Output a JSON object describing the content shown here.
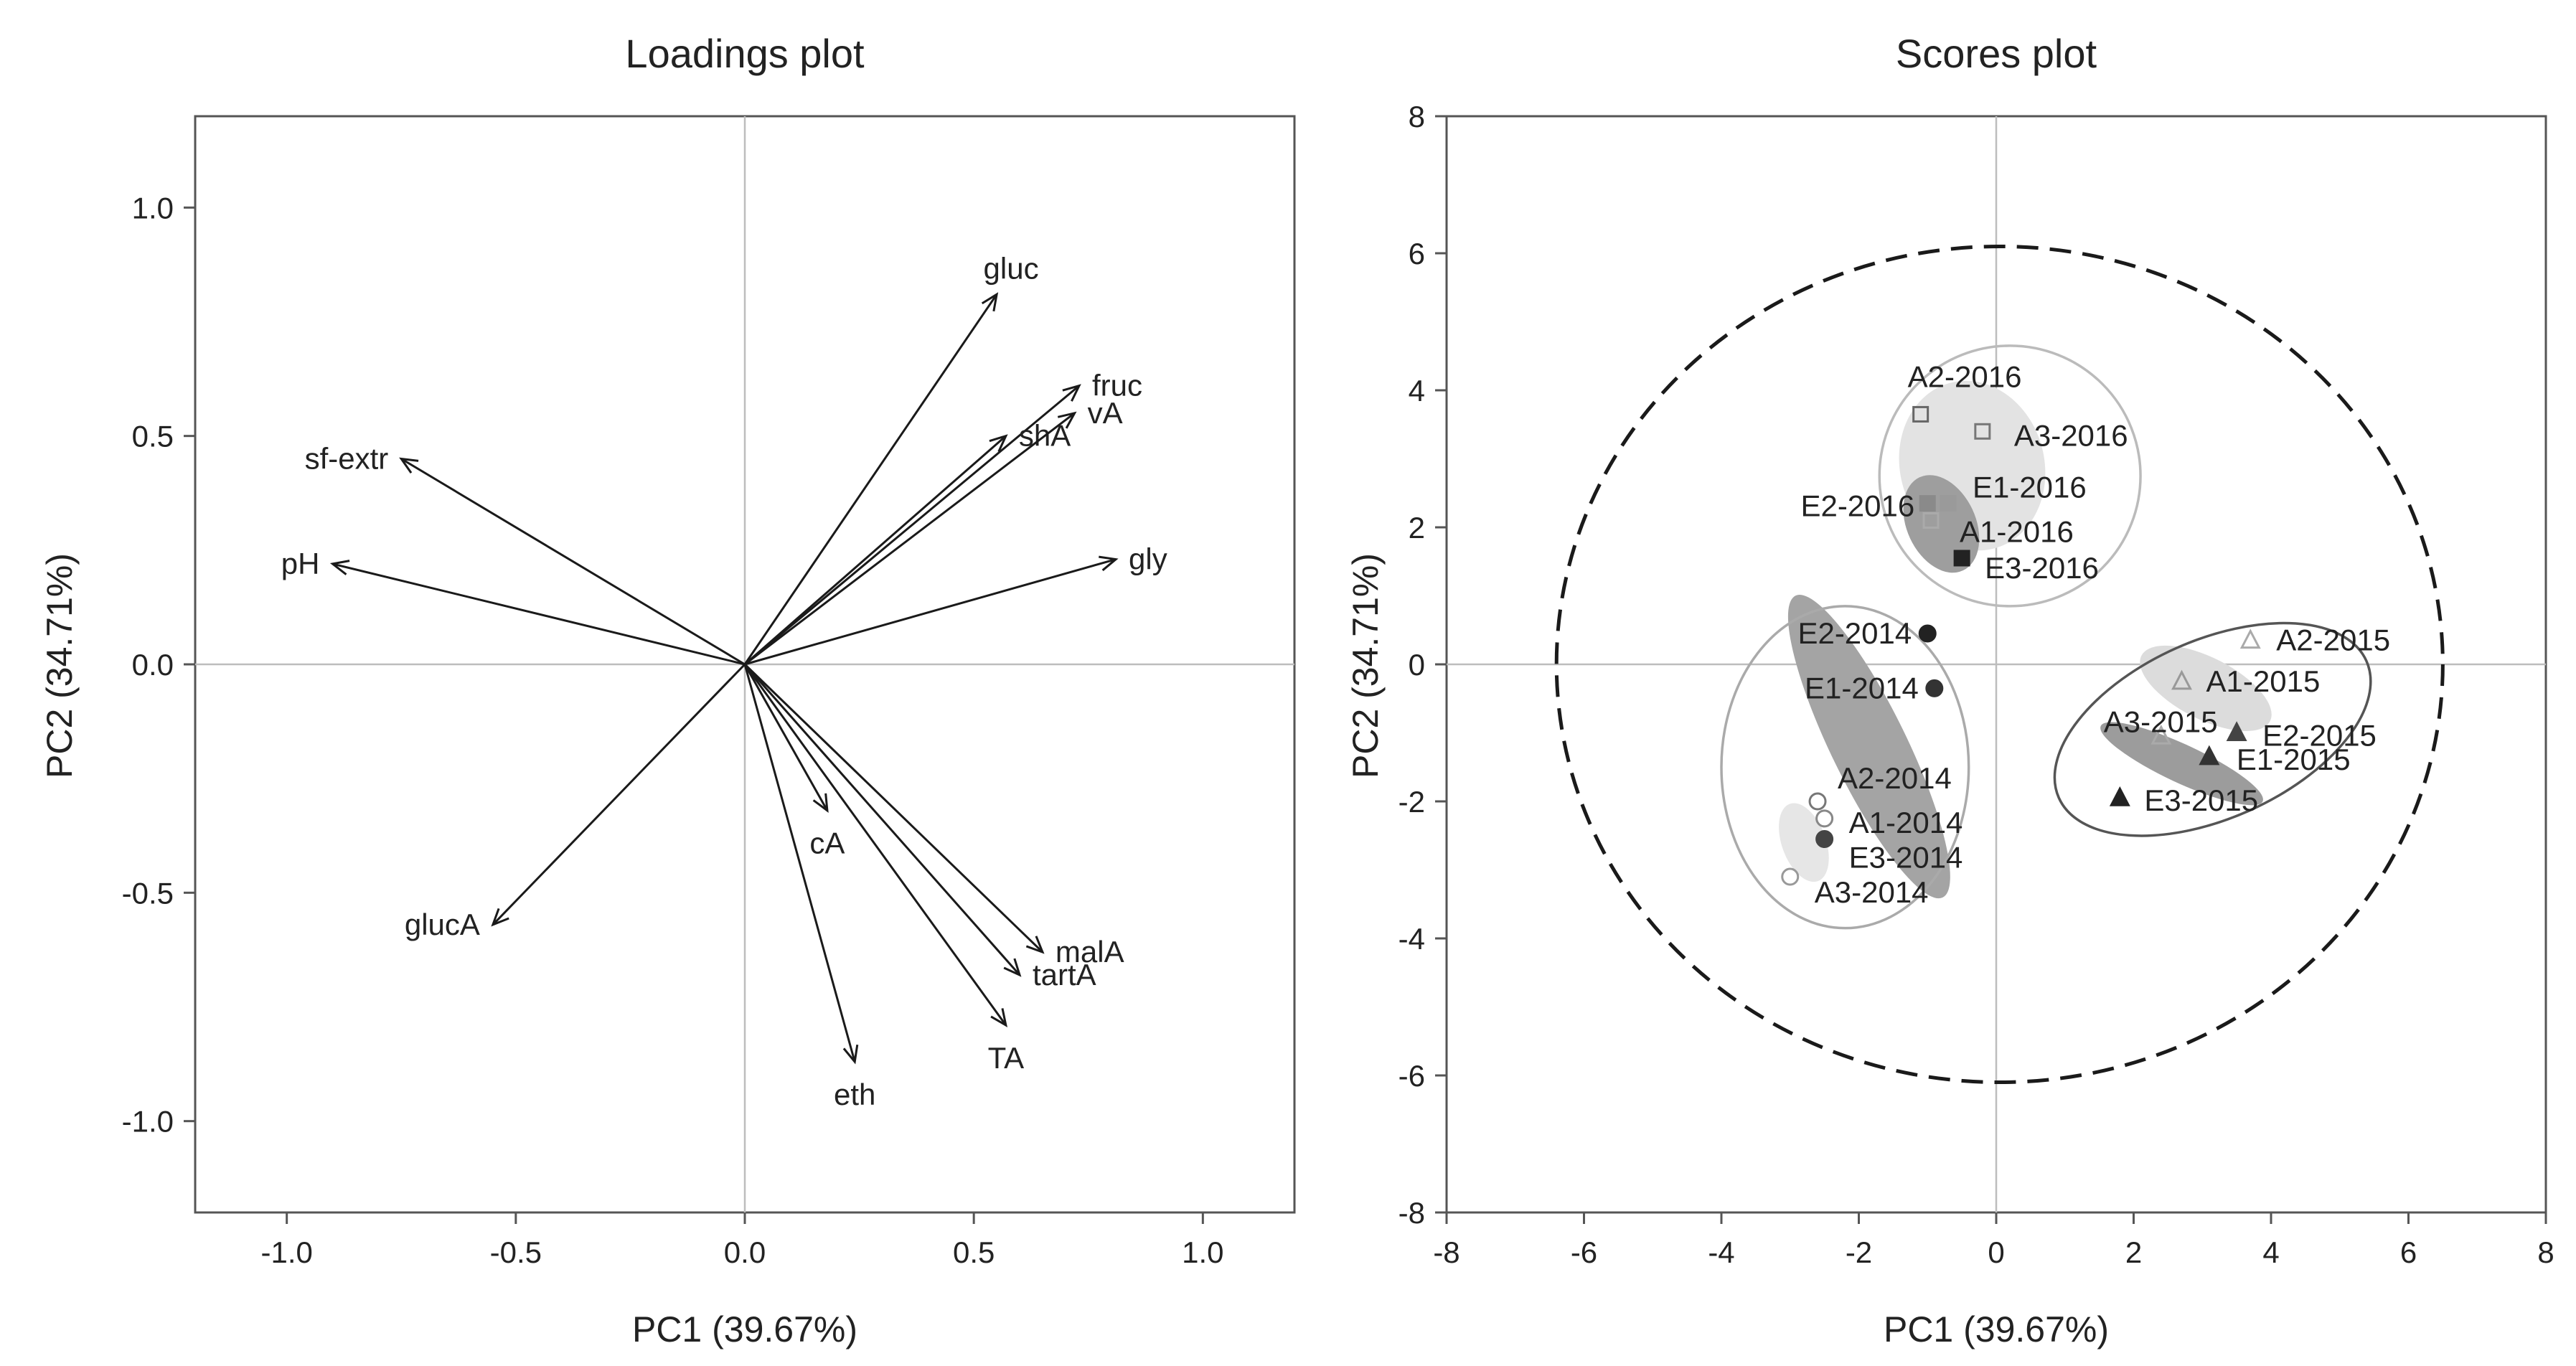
{
  "chart_data": [
    {
      "type": "loadings",
      "title": "Loadings plot",
      "xlabel": "PC1 (39.67%)",
      "ylabel": "PC2 (34.71%)",
      "xlim": [
        -1.2,
        1.2
      ],
      "ylim": [
        -1.2,
        1.2
      ],
      "xticks": [
        -1.0,
        -0.5,
        0.0,
        0.5,
        1.0
      ],
      "yticks": [
        -1.0,
        -0.5,
        0.0,
        0.5,
        1.0
      ],
      "tick_labels": [
        "-1.0",
        "-0.5",
        "0.0",
        "0.5",
        "1.0"
      ],
      "vectors": [
        {
          "name": "gluc",
          "x": 0.55,
          "y": 0.81
        },
        {
          "name": "fruc",
          "x": 0.73,
          "y": 0.61
        },
        {
          "name": "shA",
          "x": 0.57,
          "y": 0.5
        },
        {
          "name": "vA",
          "x": 0.72,
          "y": 0.55
        },
        {
          "name": "gly",
          "x": 0.81,
          "y": 0.23
        },
        {
          "name": "sf-extr",
          "x": -0.75,
          "y": 0.45
        },
        {
          "name": "pH",
          "x": -0.9,
          "y": 0.22
        },
        {
          "name": "glucA",
          "x": -0.55,
          "y": -0.57
        },
        {
          "name": "cA",
          "x": 0.18,
          "y": -0.32
        },
        {
          "name": "malA",
          "x": 0.65,
          "y": -0.63
        },
        {
          "name": "tartA",
          "x": 0.6,
          "y": -0.68
        },
        {
          "name": "TA",
          "x": 0.57,
          "y": -0.79
        },
        {
          "name": "eth",
          "x": 0.24,
          "y": -0.87
        }
      ]
    },
    {
      "type": "scatter",
      "title": "Scores plot",
      "xlabel": "PC1 (39.67%)",
      "ylabel": "PC2 (34.71%)",
      "xlim": [
        -8,
        8
      ],
      "ylim": [
        -8,
        8
      ],
      "xticks": [
        -8,
        -6,
        -4,
        -2,
        0,
        2,
        4,
        6,
        8
      ],
      "yticks": [
        -8,
        -6,
        -4,
        -2,
        0,
        2,
        4,
        6,
        8
      ],
      "tick_labels": [
        "-8",
        "-6",
        "-4",
        "-2",
        "0",
        "2",
        "4",
        "6",
        "8"
      ],
      "confidence_ellipse": {
        "style": "dashed",
        "cx": 0.05,
        "cy": 0,
        "rx": 6.45,
        "ry": 6.1
      },
      "points": [
        {
          "label": "A2-2016",
          "x": -1.1,
          "y": 3.65,
          "marker": "square-open",
          "color": "#666666"
        },
        {
          "label": "A3-2016",
          "x": -0.2,
          "y": 3.4,
          "marker": "square-open",
          "color": "#777777"
        },
        {
          "label": "E2-2016",
          "x": -1.0,
          "y": 2.35,
          "marker": "square",
          "color": "#8a8a8a"
        },
        {
          "label": "E1-2016",
          "x": -0.7,
          "y": 2.35,
          "marker": "square",
          "color": "#9a9a9a"
        },
        {
          "label": "A1-2016",
          "x": -0.95,
          "y": 2.1,
          "marker": "square-open",
          "color": "#aaaaaa"
        },
        {
          "label": "E3-2016",
          "x": -0.5,
          "y": 1.55,
          "marker": "square",
          "color": "#222222"
        },
        {
          "label": "E2-2014",
          "x": -1.0,
          "y": 0.45,
          "marker": "circle",
          "color": "#222222"
        },
        {
          "label": "E1-2014",
          "x": -0.9,
          "y": -0.35,
          "marker": "circle",
          "color": "#333333"
        },
        {
          "label": "A2-2014",
          "x": -2.6,
          "y": -2.0,
          "marker": "circle-open",
          "color": "#777777"
        },
        {
          "label": "A1-2014",
          "x": -2.5,
          "y": -2.25,
          "marker": "circle-open",
          "color": "#888888"
        },
        {
          "label": "E3-2014",
          "x": -2.5,
          "y": -2.55,
          "marker": "circle",
          "color": "#444444"
        },
        {
          "label": "A3-2014",
          "x": -3.0,
          "y": -3.1,
          "marker": "circle-open",
          "color": "#999999"
        },
        {
          "label": "A2-2015",
          "x": 3.7,
          "y": 0.35,
          "marker": "triangle-open",
          "color": "#aaaaaa"
        },
        {
          "label": "A1-2015",
          "x": 2.7,
          "y": -0.25,
          "marker": "triangle-open",
          "color": "#999999"
        },
        {
          "label": "A3-2015",
          "x": 2.4,
          "y": -1.05,
          "marker": "triangle-open",
          "color": "#aaaaaa"
        },
        {
          "label": "E2-2015",
          "x": 3.5,
          "y": -1.0,
          "marker": "triangle",
          "color": "#444444"
        },
        {
          "label": "E1-2015",
          "x": 3.1,
          "y": -1.35,
          "marker": "triangle",
          "color": "#333333"
        },
        {
          "label": "E3-2015",
          "x": 1.8,
          "y": -1.95,
          "marker": "triangle",
          "color": "#222222"
        }
      ],
      "groups": [
        {
          "name": "2016",
          "outline": {
            "cx": 0.2,
            "cy": 2.75,
            "rx": 1.9,
            "ry": 1.9,
            "angle": 0
          },
          "outline_color": "#bbbbbb",
          "fills": [
            {
              "cx": -0.35,
              "cy": 2.9,
              "rx": 1.05,
              "ry": 1.25,
              "angle": -15,
              "color": "#e3e3e3"
            },
            {
              "cx": -0.8,
              "cy": 2.05,
              "rx": 0.5,
              "ry": 0.75,
              "angle": -25,
              "color": "#9e9e9e"
            }
          ]
        },
        {
          "name": "2014",
          "outline": {
            "cx": -2.2,
            "cy": -1.5,
            "rx": 1.8,
            "ry": 2.35,
            "angle": 0
          },
          "outline_color": "#aaaaaa",
          "fills": [
            {
              "cx": -1.85,
              "cy": -1.2,
              "rx": 0.55,
              "ry": 2.45,
              "angle": -26,
              "color": "#a4a4a4"
            },
            {
              "cx": -2.8,
              "cy": -2.6,
              "rx": 0.32,
              "ry": 0.6,
              "angle": -20,
              "color": "#e6e6e6"
            }
          ]
        },
        {
          "name": "2015",
          "outline": {
            "cx": 3.15,
            "cy": -0.95,
            "rx": 2.45,
            "ry": 1.3,
            "angle": 24
          },
          "outline_color": "#555555",
          "fills": [
            {
              "cx": 3.05,
              "cy": -0.35,
              "rx": 1.05,
              "ry": 0.45,
              "angle": 27,
              "color": "#dcdcdc"
            },
            {
              "cx": 2.7,
              "cy": -1.45,
              "rx": 1.3,
              "ry": 0.28,
              "angle": 25,
              "color": "#9c9c9c"
            }
          ]
        }
      ]
    }
  ]
}
